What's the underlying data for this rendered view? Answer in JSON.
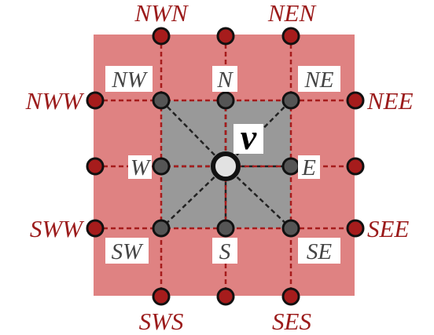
{
  "colors": {
    "outer_region": "#df8282",
    "inner_region": "#999999",
    "outer_node": "#a61c1c",
    "inner_node": "#555555",
    "outer_label": "#9b1b1b",
    "inner_label": "#444444",
    "center_label": "#000000",
    "center_fill": "#e2e2e2",
    "label_box": "#ffffff"
  },
  "center": {
    "label": "v"
  },
  "inner_labels": {
    "nw": "NW",
    "n": "N",
    "ne": "NE",
    "w": "W",
    "e": "E",
    "sw": "SW",
    "s": "S",
    "se": "SE"
  },
  "outer_labels": {
    "nwn": "NWN",
    "nen": "NEN",
    "nww": "NWW",
    "nee": "NEE",
    "sww": "SWW",
    "see": "SEE",
    "sws": "SWS",
    "ses": "SES"
  }
}
